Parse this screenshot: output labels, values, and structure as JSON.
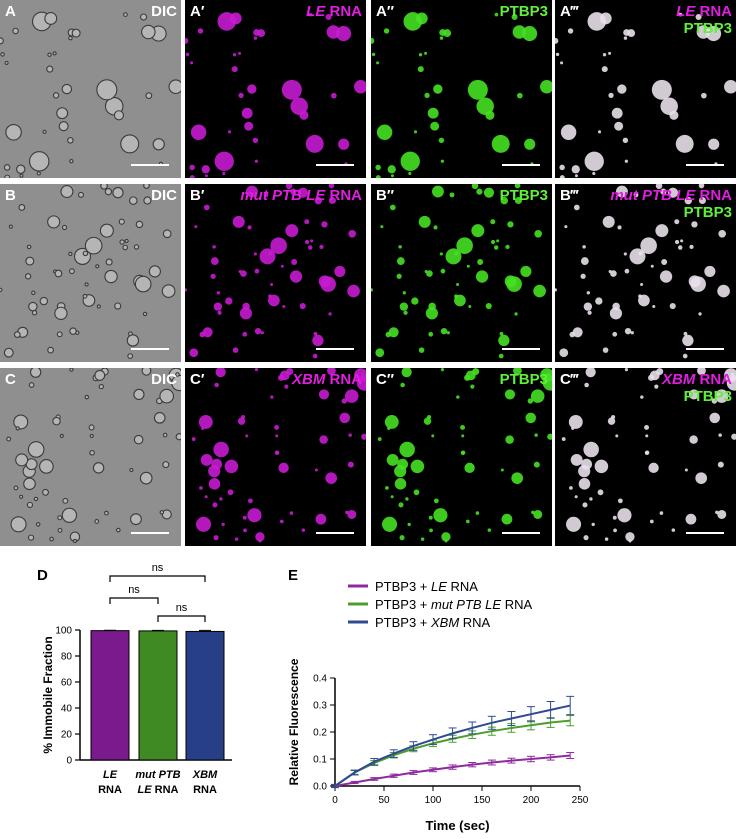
{
  "panels": [
    {
      "id": "A",
      "label": "A",
      "title_i": "",
      "title_r": "DIC",
      "line2": "",
      "kind": "dic"
    },
    {
      "id": "A1",
      "label": "A′",
      "title_i": "LE",
      "title_r": " RNA",
      "line2": "",
      "kind": "magenta"
    },
    {
      "id": "A2",
      "label": "A″",
      "title_i": "",
      "title_r": "PTBP3",
      "line2": "",
      "kind": "green"
    },
    {
      "id": "A3",
      "label": "A‴",
      "title_i": "LE",
      "title_r": " RNA",
      "line2": "PTBP3",
      "kind": "merge"
    },
    {
      "id": "B",
      "label": "B",
      "title_i": "",
      "title_r": "DIC",
      "line2": "",
      "kind": "dic"
    },
    {
      "id": "B1",
      "label": "B′",
      "title_i": "mut PTB LE",
      "title_r": " RNA",
      "line2": "",
      "kind": "magenta"
    },
    {
      "id": "B2",
      "label": "B″",
      "title_i": "",
      "title_r": "PTBP3",
      "line2": "",
      "kind": "green"
    },
    {
      "id": "B3",
      "label": "B‴",
      "title_i": "mut PTB LE",
      "title_r": " RNA",
      "line2": "PTBP3",
      "kind": "merge"
    },
    {
      "id": "C",
      "label": "C",
      "title_i": "",
      "title_r": "DIC",
      "line2": "",
      "kind": "dic"
    },
    {
      "id": "C1",
      "label": "C′",
      "title_i": "XBM",
      "title_r": " RNA",
      "line2": "",
      "kind": "magenta"
    },
    {
      "id": "C2",
      "label": "C″",
      "title_i": "",
      "title_r": "PTBP3",
      "line2": "",
      "kind": "green"
    },
    {
      "id": "C3",
      "label": "C‴",
      "title_i": "XBM",
      "title_r": " RNA",
      "line2": "PTBP3",
      "kind": "merge"
    }
  ],
  "chart_data": [
    {
      "panel_label": "D",
      "type": "bar",
      "categories": [
        {
          "italic": "LE",
          "line2": "RNA"
        },
        {
          "italic": "mut PTB",
          "line2_italic": "LE",
          "line2": " RNA"
        },
        {
          "italic": "XBM",
          "line2": "RNA"
        }
      ],
      "values": [
        99.5,
        99.3,
        98.9
      ],
      "errors": [
        0.3,
        0.4,
        0.8
      ],
      "colors": [
        "#7b1a8c",
        "#3f8a22",
        "#273f86"
      ],
      "ylabel": "% Immobile Fraction",
      "ylim": [
        0,
        100
      ],
      "yticks": [
        0,
        20,
        40,
        60,
        80,
        100
      ],
      "significance": [
        {
          "from": 0,
          "to": 2,
          "label": "ns"
        },
        {
          "from": 0,
          "to": 1,
          "label": "ns"
        },
        {
          "from": 1,
          "to": 2,
          "label": "ns"
        }
      ]
    },
    {
      "panel_label": "E",
      "type": "line",
      "xlabel": "Time (sec)",
      "ylabel": "Relative Fluorescence",
      "xlim": [
        0,
        250
      ],
      "ylim": [
        0,
        0.4
      ],
      "xticks": [
        0,
        50,
        100,
        150,
        200,
        250
      ],
      "yticks": [
        0,
        0.1,
        0.2,
        0.3,
        0.4
      ],
      "x": [
        0,
        20,
        40,
        60,
        80,
        100,
        120,
        140,
        160,
        180,
        200,
        220,
        240
      ],
      "series": [
        {
          "name_pre": "PTBP3 + ",
          "name_italic": "LE",
          "name_post": " RNA",
          "color": "#8e2aa0",
          "values": [
            0.0,
            0.013,
            0.026,
            0.038,
            0.05,
            0.06,
            0.07,
            0.079,
            0.087,
            0.094,
            0.1,
            0.106,
            0.113
          ],
          "errors": [
            0.003,
            0.004,
            0.005,
            0.006,
            0.007,
            0.007,
            0.008,
            0.008,
            0.009,
            0.009,
            0.01,
            0.01,
            0.011
          ]
        },
        {
          "name_pre": "PTBP3 + ",
          "name_italic": "mut PTB LE",
          "name_post": " RNA",
          "color": "#4c9e2c",
          "values": [
            0.0,
            0.05,
            0.085,
            0.114,
            0.138,
            0.158,
            0.175,
            0.19,
            0.203,
            0.215,
            0.225,
            0.235,
            0.242
          ],
          "errors": [
            0.005,
            0.007,
            0.009,
            0.01,
            0.011,
            0.012,
            0.013,
            0.014,
            0.015,
            0.016,
            0.017,
            0.018,
            0.019
          ]
        },
        {
          "name_pre": "PTBP3 + ",
          "name_italic": "XBM",
          "name_post": " RNA",
          "color": "#2f4a92",
          "values": [
            0.0,
            0.05,
            0.09,
            0.12,
            0.148,
            0.172,
            0.195,
            0.215,
            0.234,
            0.25,
            0.266,
            0.282,
            0.298
          ],
          "errors": [
            0.006,
            0.009,
            0.012,
            0.014,
            0.016,
            0.018,
            0.02,
            0.022,
            0.024,
            0.026,
            0.028,
            0.031,
            0.034
          ]
        }
      ]
    }
  ]
}
